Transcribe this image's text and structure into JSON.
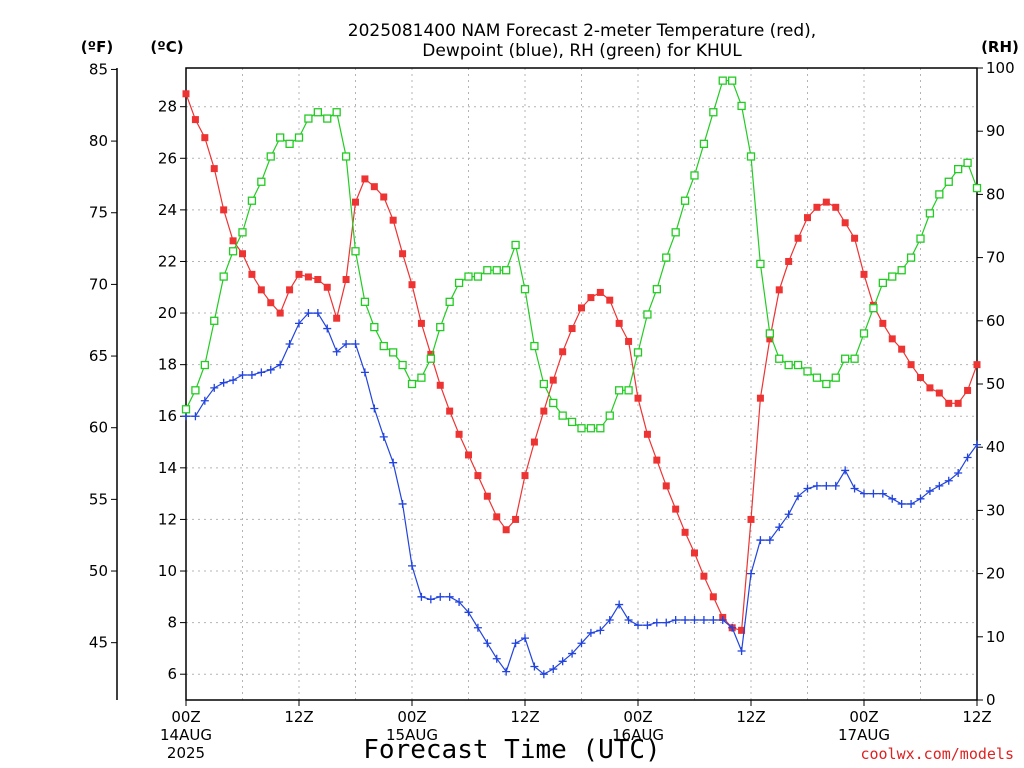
{
  "chart_data": {
    "type": "line",
    "title_line1": "2025081400 NAM Forecast 2-meter Temperature (red),",
    "title_line2": "Dewpoint (blue), RH (green) for KHUL",
    "xlabel": "Forecast Time (UTC)",
    "credit": "coolwx.com/models",
    "units": {
      "fahrenheit": "(ºF)",
      "celsius": "(ºC)",
      "rh": "(RH)"
    },
    "x_range_hours": [
      0,
      84
    ],
    "x_ticks": [
      {
        "hour": 0,
        "line1": "00Z",
        "line2": "14AUG",
        "line3": "2025"
      },
      {
        "hour": 12,
        "line1": "12Z",
        "line2": "",
        "line3": ""
      },
      {
        "hour": 24,
        "line1": "00Z",
        "line2": "15AUG",
        "line3": ""
      },
      {
        "hour": 36,
        "line1": "12Z",
        "line2": "",
        "line3": ""
      },
      {
        "hour": 48,
        "line1": "00Z",
        "line2": "16AUG",
        "line3": ""
      },
      {
        "hour": 60,
        "line1": "12Z",
        "line2": "",
        "line3": ""
      },
      {
        "hour": 72,
        "line1": "00Z",
        "line2": "17AUG",
        "line3": ""
      },
      {
        "hour": 84,
        "line1": "12Z",
        "line2": "",
        "line3": ""
      }
    ],
    "y_left_celsius": {
      "range": [
        5,
        29.5
      ],
      "ticks": [
        "6",
        "8",
        "10",
        "12",
        "14",
        "16",
        "18",
        "20",
        "22",
        "24",
        "26",
        "28"
      ]
    },
    "y_left_fahrenheit": {
      "ticks": [
        "45",
        "50",
        "55",
        "60",
        "65",
        "70",
        "75",
        "80",
        "85"
      ]
    },
    "y_right_rh": {
      "range": [
        0,
        100
      ],
      "ticks": [
        "0",
        "10",
        "20",
        "30",
        "40",
        "50",
        "60",
        "70",
        "80",
        "90",
        "100"
      ]
    },
    "series": [
      {
        "key": "temperature",
        "axis": "celsius",
        "color": "#ee3333",
        "marker": "filled-square",
        "x": [
          0,
          1,
          2,
          3,
          4,
          5,
          6,
          7,
          8,
          9,
          10,
          11,
          12,
          13,
          14,
          15,
          16,
          17,
          18,
          19,
          20,
          21,
          22,
          23,
          24,
          25,
          26,
          27,
          28,
          29,
          30,
          31,
          32,
          33,
          34,
          35,
          36,
          37,
          38,
          39,
          40,
          41,
          42,
          43,
          44,
          45,
          46,
          47,
          48,
          49,
          50,
          51,
          52,
          53,
          54,
          55,
          56,
          57,
          58,
          59,
          60,
          61,
          62,
          63,
          64,
          65,
          66,
          67,
          68,
          69,
          70,
          71,
          72,
          73,
          74,
          75,
          76,
          77,
          78,
          79,
          80,
          81,
          82,
          83,
          84
        ],
        "values": [
          28.5,
          27.5,
          26.8,
          25.6,
          24.0,
          22.8,
          22.3,
          21.5,
          20.9,
          20.4,
          20.0,
          20.9,
          21.5,
          21.4,
          21.3,
          21.0,
          19.8,
          21.3,
          24.3,
          25.2,
          24.9,
          24.5,
          23.6,
          22.3,
          21.1,
          19.6,
          18.4,
          17.2,
          16.2,
          15.3,
          14.5,
          13.7,
          12.9,
          12.1,
          11.6,
          12.0,
          13.7,
          15.0,
          16.2,
          17.4,
          18.5,
          19.4,
          20.2,
          20.6,
          20.8,
          20.5,
          19.6,
          18.9,
          16.7,
          15.3,
          14.3,
          13.3,
          12.4,
          11.5,
          10.7,
          9.8,
          9.0,
          8.2,
          7.8,
          7.7,
          12.0,
          16.7,
          19.0,
          20.9,
          22.0,
          22.9,
          23.7,
          24.1,
          24.3,
          24.1,
          23.5,
          22.9,
          21.5,
          20.3,
          19.6,
          19.0,
          18.6,
          18.0,
          17.5,
          17.1,
          16.9,
          16.5,
          16.5,
          17.0,
          18.0
        ]
      },
      {
        "key": "dewpoint",
        "axis": "celsius",
        "color": "#2244dd",
        "marker": "plus",
        "x": [
          0,
          1,
          2,
          3,
          4,
          5,
          6,
          7,
          8,
          9,
          10,
          11,
          12,
          13,
          14,
          15,
          16,
          17,
          18,
          19,
          20,
          21,
          22,
          23,
          24,
          25,
          26,
          27,
          28,
          29,
          30,
          31,
          32,
          33,
          34,
          35,
          36,
          37,
          38,
          39,
          40,
          41,
          42,
          43,
          44,
          45,
          46,
          47,
          48,
          49,
          50,
          51,
          52,
          53,
          54,
          55,
          56,
          57,
          58,
          59,
          60,
          61,
          62,
          63,
          64,
          65,
          66,
          67,
          68,
          69,
          70,
          71,
          72,
          73,
          74,
          75,
          76,
          77,
          78,
          79,
          80,
          81,
          82,
          83,
          84
        ],
        "values": [
          16.0,
          16.0,
          16.6,
          17.1,
          17.3,
          17.4,
          17.6,
          17.6,
          17.7,
          17.8,
          18.0,
          18.8,
          19.6,
          20.0,
          20.0,
          19.4,
          18.5,
          18.8,
          18.8,
          17.7,
          16.3,
          15.2,
          14.2,
          12.6,
          10.2,
          9.0,
          8.9,
          9.0,
          9.0,
          8.8,
          8.4,
          7.8,
          7.2,
          6.6,
          6.1,
          7.2,
          7.4,
          6.3,
          6.0,
          6.2,
          6.5,
          6.8,
          7.2,
          7.6,
          7.7,
          8.1,
          8.7,
          8.1,
          7.9,
          7.9,
          8.0,
          8.0,
          8.1,
          8.1,
          8.1,
          8.1,
          8.1,
          8.1,
          7.8,
          6.9,
          9.9,
          11.2,
          11.2,
          11.7,
          12.2,
          12.9,
          13.2,
          13.3,
          13.3,
          13.3,
          13.9,
          13.2,
          13.0,
          13.0,
          13.0,
          12.8,
          12.6,
          12.6,
          12.8,
          13.1,
          13.3,
          13.5,
          13.8,
          14.4,
          14.9
        ]
      },
      {
        "key": "rh",
        "axis": "rh",
        "color": "#22cc22",
        "marker": "open-square",
        "x": [
          0,
          1,
          2,
          3,
          4,
          5,
          6,
          7,
          8,
          9,
          10,
          11,
          12,
          13,
          14,
          15,
          16,
          17,
          18,
          19,
          20,
          21,
          22,
          23,
          24,
          25,
          26,
          27,
          28,
          29,
          30,
          31,
          32,
          33,
          34,
          35,
          36,
          37,
          38,
          39,
          40,
          41,
          42,
          43,
          44,
          45,
          46,
          47,
          48,
          49,
          50,
          51,
          52,
          53,
          54,
          55,
          56,
          57,
          58,
          59,
          60,
          61,
          62,
          63,
          64,
          65,
          66,
          67,
          68,
          69,
          70,
          71,
          72,
          73,
          74,
          75,
          76,
          77,
          78,
          79,
          80,
          81,
          82,
          83,
          84
        ],
        "values": [
          46,
          49,
          53,
          60,
          67,
          71,
          74,
          79,
          82,
          86,
          89,
          88,
          89,
          92,
          93,
          92,
          93,
          86,
          71,
          63,
          59,
          56,
          55,
          53,
          50,
          51,
          54,
          59,
          63,
          66,
          67,
          67,
          68,
          68,
          68,
          72,
          65,
          56,
          50,
          47,
          45,
          44,
          43,
          43,
          43,
          45,
          49,
          49,
          55,
          61,
          65,
          70,
          74,
          79,
          83,
          88,
          93,
          98,
          98,
          94,
          86,
          69,
          58,
          54,
          53,
          53,
          52,
          51,
          50,
          51,
          54,
          54,
          58,
          62,
          66,
          67,
          68,
          70,
          73,
          77,
          80,
          82,
          84,
          85,
          81
        ]
      }
    ]
  }
}
